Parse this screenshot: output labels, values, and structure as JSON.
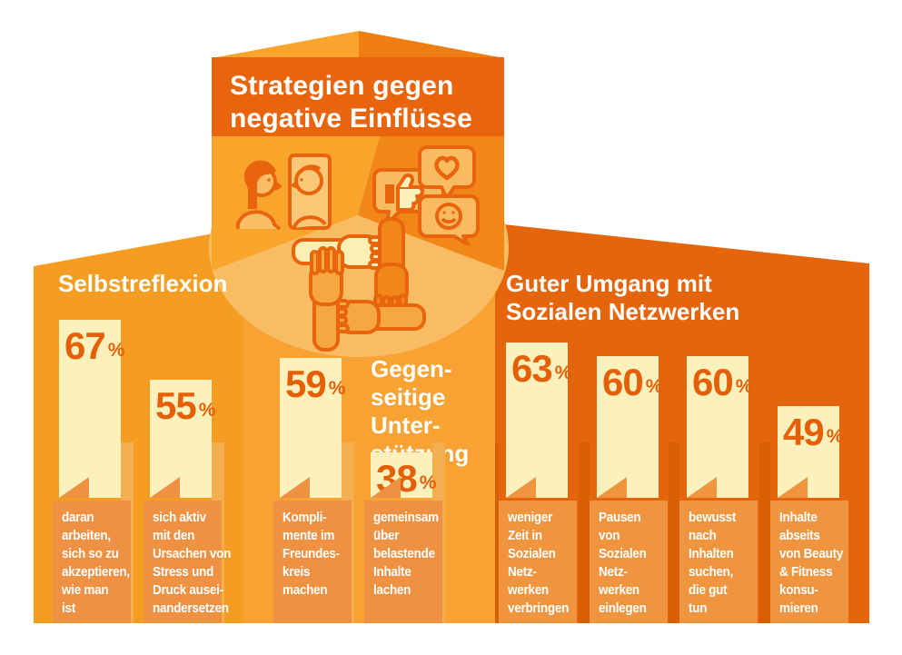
{
  "title": {
    "line1": "Strategien gegen",
    "line2": "negative Einflüsse"
  },
  "sections": {
    "left": {
      "header": "Selbstreflexion"
    },
    "middle": {
      "header_lines": [
        "Gegen-",
        "seitige",
        "Unter-",
        "stützung"
      ]
    },
    "right": {
      "header_line1": "Guter Umgang mit",
      "header_line2": "Sozialen Netzwerken"
    }
  },
  "unit": "%",
  "columns": [
    {
      "section": "left",
      "value": "67",
      "label_lines": [
        "daran",
        "arbeiten,",
        "sich so zu",
        "akzeptieren,",
        "wie man",
        "ist"
      ]
    },
    {
      "section": "left",
      "value": "55",
      "label_lines": [
        "sich aktiv",
        "mit den",
        "Ursachen von",
        "Stress und",
        "Druck ausei-",
        "nandersetzen"
      ]
    },
    {
      "section": "middle",
      "value": "59",
      "label_lines": [
        "Kompli-",
        "mente im",
        "Freundes-",
        "kreis",
        "machen"
      ]
    },
    {
      "section": "middle",
      "value": "38",
      "label_lines": [
        "gemeinsam",
        "über",
        "belastende",
        "Inhalte",
        "lachen"
      ]
    },
    {
      "section": "right",
      "value": "63",
      "label_lines": [
        "weniger",
        "Zeit in",
        "Sozialen",
        "Netz-",
        "werken",
        "verbringen"
      ]
    },
    {
      "section": "right",
      "value": "60",
      "label_lines": [
        "Pausen",
        "von",
        "Sozialen",
        "Netz-",
        "werken",
        "einlegen"
      ]
    },
    {
      "section": "right",
      "value": "60",
      "label_lines": [
        "bewusst",
        "nach",
        "Inhalten",
        "suchen,",
        "die gut",
        "tun"
      ]
    },
    {
      "section": "right",
      "value": "49",
      "label_lines": [
        "Inhalte",
        "abseits",
        "von Beauty",
        "& Fitness",
        "konsu-",
        "mieren"
      ]
    }
  ],
  "icons": [
    "mirror-self-reflection-icon",
    "speech-bubbles-likes-icon",
    "joined-hands-support-icon"
  ],
  "colors": {
    "header_dark": "#E8650D",
    "roof_left": "#F9A42C",
    "roof_right": "#EE7D12",
    "section_left_bg": "#F49D22",
    "section_middle_bg": "#F7A233",
    "section_right_bg": "#E5650D",
    "segment_left": "#F9A52C",
    "segment_right": "#F08718",
    "disc": "#FABC62",
    "bar_fill": "#FCF1BD",
    "amber_strip": "#F3AE4F",
    "dark_strip": "#D95F06",
    "label_box_left": "#EF9143",
    "label_box_right": "#F0953F",
    "percent_text": "#E45F06",
    "text_white": "#FFFFFF"
  },
  "chart_data": {
    "type": "bar",
    "title": "Strategien gegen negative Einflüsse",
    "unit": "%",
    "legend_position": "none",
    "grid": false,
    "groups": [
      {
        "group": "Selbstreflexion",
        "bars": [
          {
            "label": "daran arbeiten, sich so zu akzeptieren, wie man ist",
            "value": 67
          },
          {
            "label": "sich aktiv mit den Ursachen von Stress und Druck auseinandersetzen",
            "value": 55
          }
        ]
      },
      {
        "group": "Gegenseitige Unterstützung",
        "bars": [
          {
            "label": "Komplimente im Freundeskreis machen",
            "value": 59
          },
          {
            "label": "gemeinsam über belastende Inhalte lachen",
            "value": 38
          }
        ]
      },
      {
        "group": "Guter Umgang mit Sozialen Netzwerken",
        "bars": [
          {
            "label": "weniger Zeit in Sozialen Netzwerken verbringen",
            "value": 63
          },
          {
            "label": "Pausen von Sozialen Netzwerken einlegen",
            "value": 60
          },
          {
            "label": "bewusst nach Inhalten suchen, die gut tun",
            "value": 60
          },
          {
            "label": "Inhalte abseits von Beauty & Fitness konsumieren",
            "value": 49
          }
        ]
      }
    ]
  }
}
